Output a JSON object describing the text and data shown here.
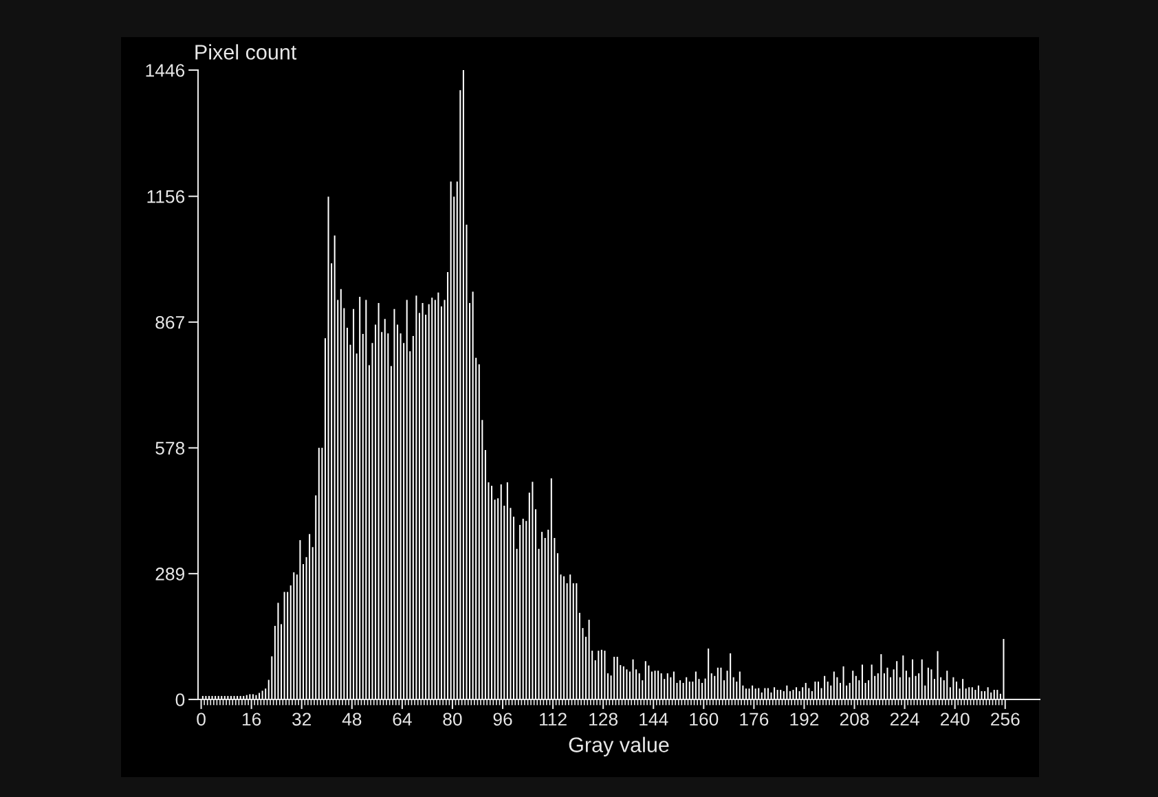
{
  "chart_data": {
    "type": "histogram",
    "xlabel": "Gray value",
    "ylabel": "Pixel count",
    "color": "#ffffff",
    "bins": [
      0,
      1,
      2,
      3,
      4,
      5,
      6,
      7,
      8,
      9,
      10,
      11,
      12,
      13,
      14,
      15,
      16,
      17,
      18,
      19,
      20,
      21,
      22,
      23,
      24,
      25,
      26,
      27,
      28,
      29,
      30,
      31,
      32,
      33,
      34,
      35,
      36,
      37,
      38,
      39,
      40,
      41,
      42,
      43,
      44,
      45,
      46,
      47,
      48,
      49,
      50,
      51,
      52,
      53,
      54,
      55,
      56,
      57,
      58,
      59,
      60,
      61,
      62,
      63,
      64,
      65,
      66,
      67,
      68,
      69,
      70,
      71,
      72,
      73,
      74,
      75,
      76,
      77,
      78,
      79,
      80,
      81,
      82,
      83,
      84,
      85,
      86,
      87,
      88,
      89,
      90,
      91,
      92,
      93,
      94,
      95,
      96,
      97,
      98,
      99,
      100,
      101,
      102,
      103,
      104,
      105,
      106,
      107,
      108,
      109,
      110,
      111,
      112,
      113,
      114,
      115,
      116,
      117,
      118,
      119,
      120,
      121,
      122,
      123,
      124,
      125,
      126,
      127,
      128,
      129,
      130,
      131,
      132,
      133,
      134,
      135,
      136,
      137,
      138,
      139,
      140,
      141,
      142,
      143,
      144,
      145,
      146,
      147,
      148,
      149,
      150,
      151,
      152,
      153,
      154,
      155,
      156,
      157,
      158,
      159,
      160,
      161,
      162,
      163,
      164,
      165,
      166,
      167,
      168,
      169,
      170,
      171,
      172,
      173,
      174,
      175,
      176,
      177,
      178,
      179,
      180,
      181,
      182,
      183,
      184,
      185,
      186,
      187,
      188,
      189,
      190,
      191,
      192,
      193,
      194,
      195,
      196,
      197,
      198,
      199,
      200,
      201,
      202,
      203,
      204,
      205,
      206,
      207,
      208,
      209,
      210,
      211,
      212,
      213,
      214,
      215,
      216,
      217,
      218,
      219,
      220,
      221,
      222,
      223,
      224,
      225,
      226,
      227,
      228,
      229,
      230,
      231,
      232,
      233,
      234,
      235,
      236,
      237,
      238,
      239,
      240,
      241,
      242,
      243,
      244,
      245,
      246,
      247,
      248,
      249,
      250,
      251,
      252,
      253,
      254,
      255,
      256
    ],
    "values": [
      8,
      8,
      8,
      8,
      8,
      8,
      8,
      8,
      8,
      8,
      8,
      8,
      8,
      8,
      10,
      12,
      12,
      10,
      15,
      20,
      25,
      45,
      99,
      169,
      222,
      173,
      247,
      247,
      262,
      292,
      287,
      366,
      311,
      327,
      380,
      350,
      469,
      578,
      578,
      830,
      1155,
      1002,
      1066,
      918,
      943,
      899,
      854,
      815,
      897,
      795,
      925,
      840,
      918,
      768,
      819,
      861,
      911,
      844,
      874,
      841,
      766,
      897,
      861,
      841,
      819,
      918,
      800,
      835,
      928,
      888,
      911,
      884,
      908,
      923,
      918,
      935,
      903,
      918,
      982,
      1190,
      1155,
      1190,
      1400,
      1446,
      1091,
      911,
      937,
      785,
      770,
      642,
      573,
      499,
      491,
      459,
      462,
      494,
      445,
      499,
      440,
      420,
      346,
      401,
      415,
      410,
      475,
      500,
      437,
      346,
      385,
      371,
      390,
      508,
      371,
      336,
      287,
      283,
      267,
      287,
      267,
      267,
      199,
      164,
      144,
      183,
      112,
      90,
      112,
      114,
      112,
      60,
      55,
      98,
      98,
      79,
      76,
      69,
      64,
      92,
      69,
      60,
      44,
      88,
      78,
      64,
      66,
      66,
      60,
      47,
      60,
      51,
      64,
      38,
      44,
      38,
      51,
      41,
      41,
      64,
      47,
      38,
      48,
      117,
      60,
      54,
      73,
      73,
      44,
      66,
      106,
      51,
      41,
      64,
      32,
      25,
      25,
      32,
      25,
      26,
      16,
      26,
      26,
      16,
      28,
      22,
      22,
      19,
      32,
      19,
      22,
      28,
      19,
      28,
      38,
      26,
      19,
      41,
      41,
      26,
      54,
      41,
      32,
      64,
      51,
      38,
      76,
      32,
      38,
      66,
      54,
      44,
      80,
      38,
      44,
      80,
      54,
      60,
      104,
      60,
      73,
      51,
      69,
      88,
      51,
      101,
      66,
      51,
      92,
      54,
      60,
      92,
      32,
      73,
      69,
      47,
      111,
      51,
      44,
      66,
      28,
      51,
      41,
      25,
      47,
      25,
      28,
      28,
      22,
      32,
      19,
      19,
      28,
      16,
      22,
      22,
      13,
      139
    ],
    "xlim": [
      -1,
      267
    ],
    "ylim": [
      0,
      1446
    ],
    "xticks": [
      0,
      16,
      32,
      48,
      64,
      80,
      96,
      112,
      128,
      144,
      160,
      176,
      192,
      208,
      224,
      240,
      256
    ],
    "yticks": [
      0,
      289,
      578,
      867,
      1156,
      1446
    ],
    "grid": false,
    "legend": false
  }
}
